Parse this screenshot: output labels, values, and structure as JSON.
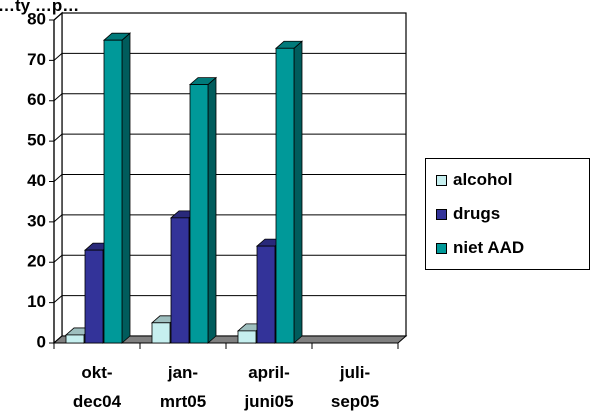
{
  "chart_data": {
    "type": "bar",
    "title": "…ty  …p…",
    "categories": [
      [
        "okt-",
        "dec04"
      ],
      [
        "jan-",
        "mrt05"
      ],
      [
        "april-",
        "juni05"
      ],
      [
        "juli-",
        "sep05"
      ]
    ],
    "series": [
      {
        "name": "alcohol",
        "color": "#c6efef",
        "values": [
          2,
          5,
          3,
          0
        ]
      },
      {
        "name": "drugs",
        "color": "#333399",
        "values": [
          23,
          31,
          24,
          0
        ]
      },
      {
        "name": "niet AAD",
        "color": "#009999",
        "values": [
          75,
          64,
          73,
          0
        ]
      }
    ],
    "ylim": [
      0,
      80
    ],
    "yticks": [
      0,
      10,
      20,
      30,
      40,
      50,
      60,
      70,
      80
    ],
    "xlabel": "",
    "ylabel": "",
    "grid": true,
    "legend_position": "right"
  }
}
